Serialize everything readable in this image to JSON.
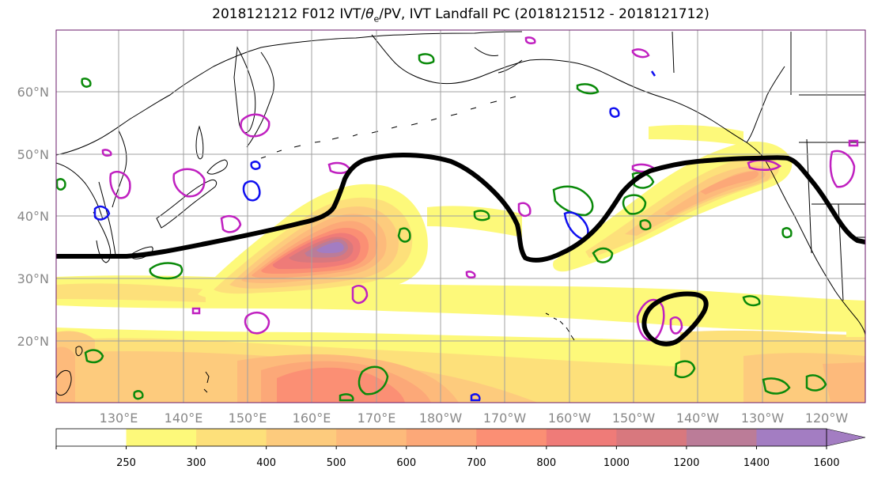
{
  "title": {
    "prefix": "2018121212 F012 IVT/",
    "theta": "θ",
    "theta_sub": "e",
    "suffix": "/PV, IVT Landfall PC (2018121512 - 2018121712)"
  },
  "lat_labels": [
    "60°N",
    "50°N",
    "40°N",
    "30°N",
    "20°N"
  ],
  "lon_labels": [
    "130°E",
    "140°E",
    "150°E",
    "160°E",
    "170°E",
    "180°W",
    "170°W",
    "160°W",
    "150°W",
    "140°W",
    "130°W",
    "120°W"
  ],
  "colorbar": {
    "ticks": [
      "250",
      "300",
      "400",
      "500",
      "600",
      "700",
      "800",
      "1000",
      "1200",
      "1400",
      "1600"
    ],
    "colors": [
      "#ffffff",
      "#fdf97a",
      "#fde07a",
      "#fdcb7d",
      "#fdba7b",
      "#fca878",
      "#fb8f74",
      "#ef7b78",
      "#d8787e",
      "#bb7c98",
      "#a37dc2"
    ],
    "extend_color": "#a37dc2"
  },
  "ivt_colors": {
    "level_250": "#fdf97a",
    "level_300": "#fde07a",
    "level_400": "#fdcb7d",
    "level_500": "#fdba7b",
    "level_600": "#fca878",
    "level_800": "#fb8f74",
    "level_1000": "#ef7b78",
    "level_1200": "#d8787e",
    "level_1400": "#bb7c98",
    "level_1600": "#a37dc2"
  },
  "contour_colors": {
    "pv_green": "#0a8a0a",
    "pv_magenta": "#c020c0",
    "pv_blue": "#1010f0",
    "theta_e_black": "#000000"
  },
  "map_border_color": "#6a1a6a",
  "grid_color": "#a0a0a0"
}
